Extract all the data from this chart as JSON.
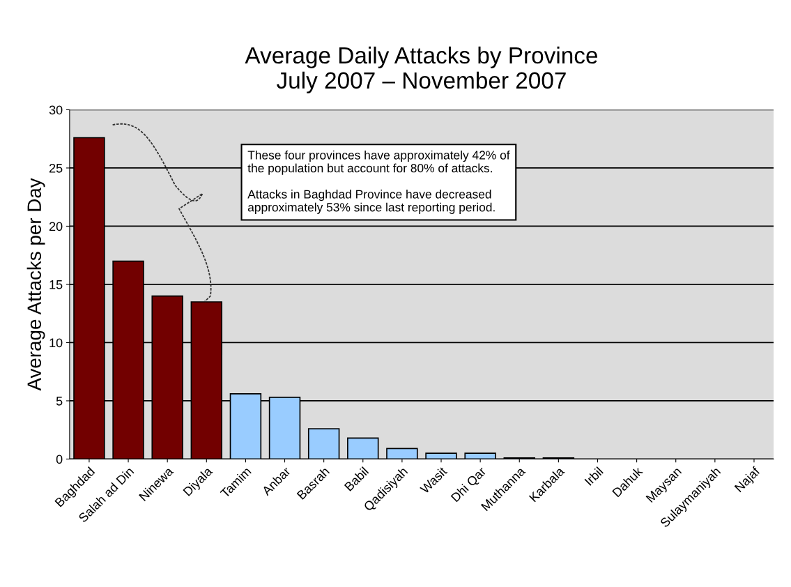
{
  "chart_data": {
    "type": "bar",
    "title": "Average Daily Attacks by Province\nJuly 2007 – November 2007",
    "ylabel": "Average Attacks per Day",
    "categories": [
      "Baghdad",
      "Salah ad Din",
      "Ninewa",
      "Diyala",
      "Tamim",
      "Anbar",
      "Basrah",
      "Babil",
      "Qadisiyah",
      "Wasit",
      "Dhi Qar",
      "Muthanna",
      "Karbala",
      "Irbil",
      "Dahuk",
      "Maysan",
      "Sulaymaniyah",
      "Najaf"
    ],
    "values": [
      27.6,
      17.0,
      14.0,
      13.5,
      5.6,
      5.3,
      2.6,
      1.8,
      0.9,
      0.5,
      0.5,
      0.1,
      0.1,
      0,
      0,
      0,
      0,
      0
    ],
    "colors": [
      "#720000",
      "#720000",
      "#720000",
      "#720000",
      "#99ccff",
      "#99ccff",
      "#99ccff",
      "#99ccff",
      "#99ccff",
      "#99ccff",
      "#99ccff",
      "#99ccff",
      "#99ccff",
      "#99ccff",
      "#99ccff",
      "#99ccff",
      "#99ccff",
      "#99ccff"
    ],
    "ylim": [
      0,
      30
    ],
    "yticks": [
      0,
      5,
      10,
      15,
      20,
      25,
      30
    ],
    "grid": "y",
    "annotations": [
      "These four provinces have approximately 42% of\nthe population but account for 80% of attacks.\n\nAttacks in Baghdad Province have decreased\napproximately 53% since last reporting period."
    ]
  }
}
